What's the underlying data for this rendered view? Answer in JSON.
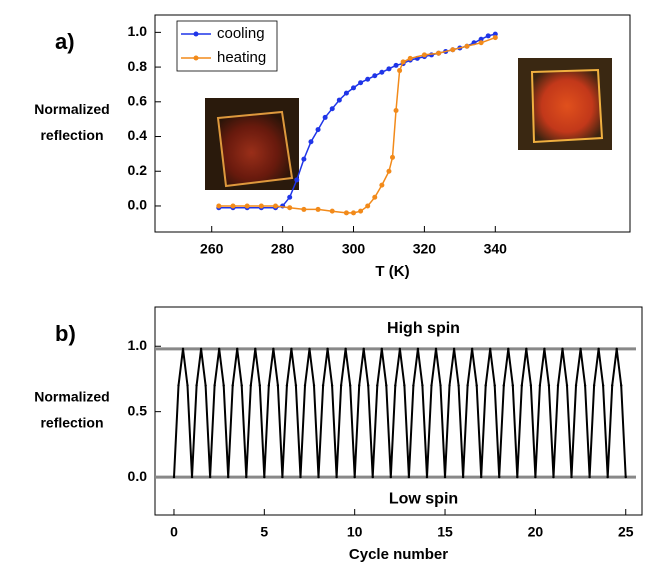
{
  "chart_data": [
    {
      "type": "line",
      "panel_label": "a)",
      "xlabel": "T (K)",
      "ylabel": [
        "Normalized",
        "reflection"
      ],
      "xlim": [
        244,
        378
      ],
      "xticks": [
        260,
        280,
        300,
        320,
        340
      ],
      "ylim": [
        -0.15,
        1.1
      ],
      "yticks": [
        {
          "value": 0,
          "label": "0.0"
        },
        0.2,
        0.4,
        0.6,
        0.8,
        {
          "value": 1,
          "label": "1.0"
        }
      ],
      "legend": "upper left",
      "series": [
        {
          "name": "cooling",
          "color": "#1f35e8",
          "x": [
            262,
            266,
            270,
            274,
            278,
            280,
            282,
            284,
            286,
            288,
            290,
            292,
            294,
            296,
            298,
            300,
            302,
            304,
            306,
            308,
            310,
            312,
            314,
            316,
            318,
            320,
            322,
            324,
            326,
            328,
            330,
            332,
            334,
            336,
            338,
            340
          ],
          "values": [
            -0.01,
            -0.01,
            -0.01,
            -0.01,
            -0.01,
            0.0,
            0.05,
            0.15,
            0.27,
            0.37,
            0.44,
            0.51,
            0.56,
            0.61,
            0.65,
            0.68,
            0.71,
            0.73,
            0.75,
            0.77,
            0.79,
            0.81,
            0.82,
            0.84,
            0.85,
            0.86,
            0.87,
            0.88,
            0.89,
            0.9,
            0.91,
            0.92,
            0.94,
            0.96,
            0.98,
            0.99
          ]
        },
        {
          "name": "heating",
          "color": "#f28a1a",
          "x": [
            262,
            266,
            270,
            274,
            278,
            282,
            286,
            290,
            294,
            298,
            300,
            302,
            304,
            306,
            308,
            310,
            311,
            312,
            313,
            314,
            316,
            320,
            324,
            328,
            332,
            336,
            340
          ],
          "values": [
            0,
            0,
            0,
            0,
            0,
            -0.01,
            -0.02,
            -0.02,
            -0.03,
            -0.04,
            -0.04,
            -0.03,
            0.0,
            0.05,
            0.12,
            0.2,
            0.28,
            0.55,
            0.78,
            0.83,
            0.85,
            0.87,
            0.88,
            0.9,
            0.92,
            0.94,
            0.97
          ]
        }
      ]
    },
    {
      "type": "line",
      "panel_label": "b)",
      "xlabel": "Cycle number",
      "ylabel": [
        "Normalized",
        "reflection"
      ],
      "xlim": [
        -1.05,
        25.9
      ],
      "xticks": [
        0,
        5,
        10,
        15,
        20,
        25
      ],
      "ylim": [
        -0.29,
        1.3
      ],
      "yticks": [
        {
          "value": 0,
          "label": "0.0"
        },
        0.5,
        {
          "value": 1,
          "label": "1.0"
        }
      ],
      "hlines": [
        0.98,
        0
      ],
      "hline_color": "#888888",
      "annotations": [
        "High spin",
        "Low spin"
      ],
      "color": "#000000",
      "x": [
        0,
        0.25,
        0.5,
        0.75,
        1,
        1.25,
        1.5,
        1.75,
        2,
        2.25,
        2.5,
        2.75,
        3,
        3.25,
        3.5,
        3.75,
        4,
        4.25,
        4.5,
        4.75,
        5,
        5.25,
        5.5,
        5.75,
        6,
        6.25,
        6.5,
        6.75,
        7,
        7.25,
        7.5,
        7.75,
        8,
        8.25,
        8.5,
        8.75,
        9,
        9.25,
        9.5,
        9.75,
        10,
        10.25,
        10.5,
        10.75,
        11,
        11.25,
        11.5,
        11.75,
        12,
        12.25,
        12.5,
        12.75,
        13,
        13.25,
        13.5,
        13.75,
        14,
        14.25,
        14.5,
        14.75,
        15,
        15.25,
        15.5,
        15.75,
        16,
        16.25,
        16.5,
        16.75,
        17,
        17.25,
        17.5,
        17.75,
        18,
        18.25,
        18.5,
        18.75,
        19,
        19.25,
        19.5,
        19.75,
        20,
        20.25,
        20.5,
        20.75,
        21,
        21.25,
        21.5,
        21.75,
        22,
        22.25,
        22.5,
        22.75,
        23,
        23.25,
        23.5,
        23.75,
        24,
        24.25,
        24.5,
        24.75,
        25
      ],
      "values": [
        0,
        0.7,
        0.98,
        0.7,
        0,
        0.7,
        0.98,
        0.7,
        0,
        0.7,
        0.98,
        0.7,
        0,
        0.7,
        0.98,
        0.7,
        0,
        0.7,
        0.98,
        0.7,
        0,
        0.7,
        0.98,
        0.7,
        0,
        0.7,
        0.98,
        0.7,
        0,
        0.7,
        0.98,
        0.7,
        0,
        0.7,
        0.98,
        0.7,
        0,
        0.7,
        0.98,
        0.7,
        0,
        0.7,
        0.98,
        0.7,
        0,
        0.7,
        0.98,
        0.7,
        0,
        0.7,
        0.98,
        0.7,
        0,
        0.7,
        0.98,
        0.7,
        0,
        0.7,
        0.98,
        0.7,
        0,
        0.7,
        0.98,
        0.7,
        0,
        0.7,
        0.98,
        0.7,
        0,
        0.7,
        0.98,
        0.7,
        0,
        0.7,
        0.98,
        0.7,
        0,
        0.7,
        0.98,
        0.7,
        0,
        0.7,
        0.98,
        0.7,
        0,
        0.7,
        0.98,
        0.7,
        0,
        0.7,
        0.98,
        0.7,
        0,
        0.7,
        0.98,
        0.7,
        0,
        0.7,
        0.98,
        0.7,
        0
      ]
    }
  ]
}
